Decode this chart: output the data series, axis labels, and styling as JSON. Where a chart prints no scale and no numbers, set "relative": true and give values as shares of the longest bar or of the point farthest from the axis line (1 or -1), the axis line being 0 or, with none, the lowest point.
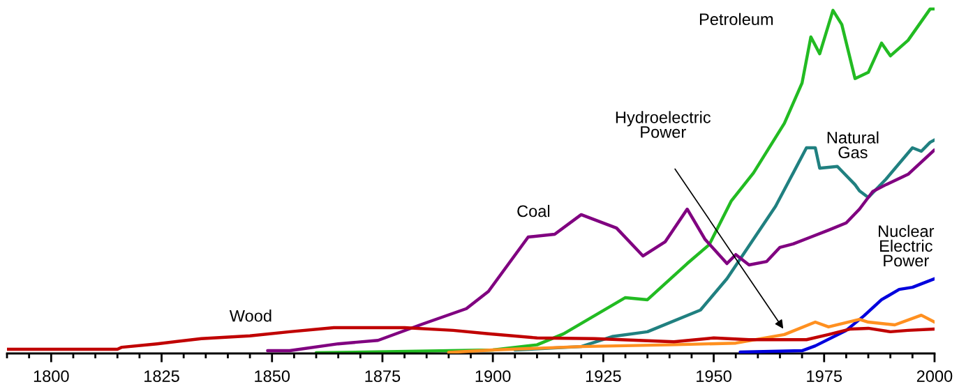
{
  "chart_data": {
    "type": "line",
    "relative": true,
    "legend": false,
    "grid": false,
    "marker": "none",
    "line_style": "solid",
    "xlim": [
      1790,
      2000
    ],
    "xticks": [
      {
        "value": 1790,
        "label": null
      },
      {
        "value": 1795,
        "label": null
      },
      1800,
      {
        "value": 1805,
        "label": null
      },
      {
        "value": 1810,
        "label": null
      },
      {
        "value": 1815,
        "label": null
      },
      {
        "value": 1820,
        "label": null
      },
      1825,
      {
        "value": 1830,
        "label": null
      },
      {
        "value": 1835,
        "label": null
      },
      {
        "value": 1840,
        "label": null
      },
      {
        "value": 1845,
        "label": null
      },
      1850,
      {
        "value": 1855,
        "label": null
      },
      {
        "value": 1860,
        "label": null
      },
      {
        "value": 1865,
        "label": null
      },
      {
        "value": 1870,
        "label": null
      },
      1875,
      {
        "value": 1880,
        "label": null
      },
      {
        "value": 1885,
        "label": null
      },
      {
        "value": 1890,
        "label": null
      },
      {
        "value": 1895,
        "label": null
      },
      1900,
      {
        "value": 1905,
        "label": null
      },
      {
        "value": 1910,
        "label": null
      },
      {
        "value": 1915,
        "label": null
      },
      {
        "value": 1920,
        "label": null
      },
      1925,
      {
        "value": 1930,
        "label": null
      },
      {
        "value": 1935,
        "label": null
      },
      {
        "value": 1940,
        "label": null
      },
      {
        "value": 1945,
        "label": null
      },
      1950,
      {
        "value": 1955,
        "label": null
      },
      {
        "value": 1960,
        "label": null
      },
      {
        "value": 1965,
        "label": null
      },
      {
        "value": 1970,
        "label": null
      },
      1975,
      {
        "value": 1980,
        "label": null
      },
      {
        "value": 1985,
        "label": null
      },
      {
        "value": 1990,
        "label": null
      },
      {
        "value": 1995,
        "label": null
      },
      2000
    ],
    "annotations": [
      "Hydroelectric\nPower"
    ],
    "series": [
      {
        "name": "Petroleum",
        "color": "#22bb22",
        "x": [
          1860,
          1900,
          1910,
          1916,
          1930,
          1935,
          1944,
          1949,
          1954,
          1959,
          1966,
          1970,
          1972,
          1974,
          1977,
          1979,
          1982,
          1985,
          1988,
          1990,
          1994,
          1999,
          2000
        ],
        "values": [
          0.002,
          0.01,
          0.025,
          0.057,
          0.162,
          0.156,
          0.261,
          0.316,
          0.443,
          0.524,
          0.668,
          0.785,
          0.919,
          0.87,
          0.996,
          0.955,
          0.798,
          0.816,
          0.901,
          0.864,
          0.909,
          1.0,
          1.0
        ]
      },
      {
        "name": "Natural\nGas",
        "color": "#208080",
        "x": [
          1905,
          1920,
          1927,
          1935,
          1947,
          1953,
          1964,
          1968,
          1971,
          1973,
          1974,
          1978,
          1982,
          1983,
          1985,
          1989,
          1995,
          1997,
          1999,
          2000
        ],
        "values": [
          0.01,
          0.02,
          0.049,
          0.063,
          0.126,
          0.217,
          0.427,
          0.524,
          0.597,
          0.597,
          0.538,
          0.543,
          0.49,
          0.472,
          0.453,
          0.506,
          0.597,
          0.587,
          0.613,
          0.62
        ]
      },
      {
        "name": "Coal",
        "color": "#800080",
        "x": [
          1849,
          1854,
          1865,
          1874,
          1884,
          1894,
          1899,
          1908,
          1914,
          1920,
          1928,
          1934,
          1939,
          1944,
          1948,
          1953,
          1955,
          1958,
          1962,
          1965,
          1968,
          1972,
          1976,
          1980,
          1983,
          1986,
          1989,
          1994,
          2000
        ],
        "values": [
          0.008,
          0.008,
          0.028,
          0.038,
          0.085,
          0.13,
          0.18,
          0.338,
          0.346,
          0.403,
          0.364,
          0.283,
          0.324,
          0.419,
          0.332,
          0.261,
          0.287,
          0.257,
          0.267,
          0.308,
          0.318,
          0.338,
          0.358,
          0.379,
          0.419,
          0.47,
          0.49,
          0.52,
          0.591
        ]
      },
      {
        "name": "Nuclear\nElectric\nPower",
        "color": "#0000dd",
        "x": [
          1956,
          1970,
          1973,
          1980,
          1984,
          1988,
          1992,
          1995,
          2000
        ],
        "values": [
          0.004,
          0.008,
          0.022,
          0.067,
          0.109,
          0.156,
          0.186,
          0.192,
          0.217
        ]
      },
      {
        "name": null,
        "color": "#ff9020",
        "x": [
          1890,
          1900,
          1920,
          1940,
          1955,
          1966,
          1973,
          1976,
          1983,
          1985,
          1991,
          1997,
          2000
        ],
        "values": [
          0.003,
          0.01,
          0.02,
          0.025,
          0.03,
          0.055,
          0.091,
          0.077,
          0.099,
          0.091,
          0.083,
          0.111,
          0.091
        ]
      },
      {
        "name": "Wood",
        "color": "#c00000",
        "x": [
          1790,
          1815,
          1816,
          1824,
          1834,
          1845,
          1854,
          1864,
          1880,
          1891,
          1899,
          1910,
          1923,
          1941,
          1950,
          1958,
          1971,
          1976,
          1981,
          1985,
          1990,
          1994,
          2000
        ],
        "values": [
          0.012,
          0.012,
          0.018,
          0.028,
          0.043,
          0.051,
          0.063,
          0.075,
          0.075,
          0.067,
          0.057,
          0.045,
          0.043,
          0.034,
          0.045,
          0.04,
          0.04,
          0.055,
          0.071,
          0.073,
          0.063,
          0.067,
          0.071
        ]
      }
    ]
  }
}
